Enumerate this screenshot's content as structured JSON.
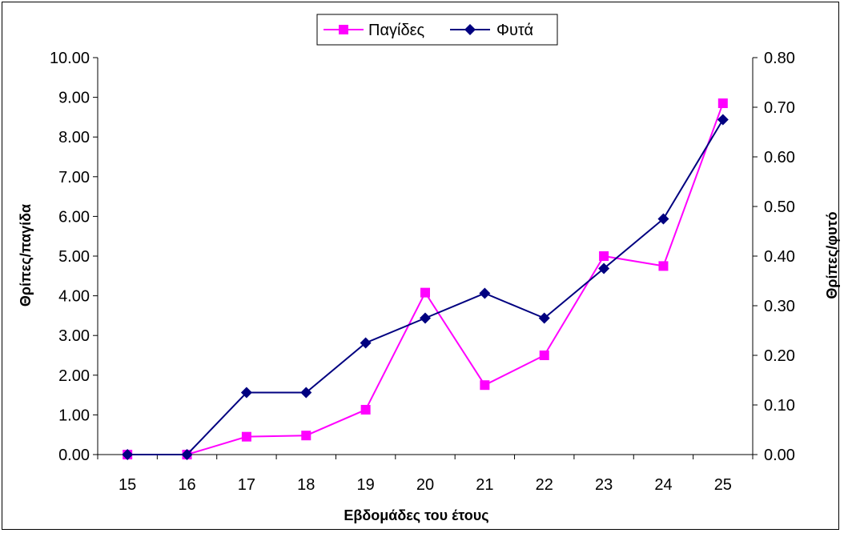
{
  "chart_data": {
    "type": "line",
    "categories": [
      "15",
      "16",
      "17",
      "18",
      "19",
      "20",
      "21",
      "22",
      "23",
      "24",
      "25"
    ],
    "xlabel": "Εβδομάδες του έτους",
    "ylabel": "Θρίπες/παγίδα",
    "ylabel_right": "Θρίπες/φυτό",
    "ylim": [
      0,
      10
    ],
    "ylim_right": [
      0,
      0.8
    ],
    "yticks": [
      "0.00",
      "1.00",
      "2.00",
      "3.00",
      "4.00",
      "5.00",
      "6.00",
      "7.00",
      "8.00",
      "9.00",
      "10.00"
    ],
    "yticks_right": [
      "0.00",
      "0.10",
      "0.20",
      "0.30",
      "0.40",
      "0.50",
      "0.60",
      "0.70",
      "0.80"
    ],
    "legend_position": "top",
    "grid": false,
    "series": [
      {
        "name": "Παγίδες",
        "axis": "left",
        "color": "#FF00FF",
        "marker": "square",
        "values": [
          0.0,
          0.0,
          0.45,
          0.48,
          1.13,
          4.08,
          1.75,
          2.5,
          5.0,
          4.75,
          8.85
        ]
      },
      {
        "name": "Φυτά",
        "axis": "right",
        "color": "#000080",
        "marker": "diamond",
        "values": [
          0.0,
          0.0,
          0.125,
          0.125,
          0.225,
          0.275,
          0.325,
          0.275,
          0.375,
          0.475,
          0.675
        ]
      }
    ]
  }
}
